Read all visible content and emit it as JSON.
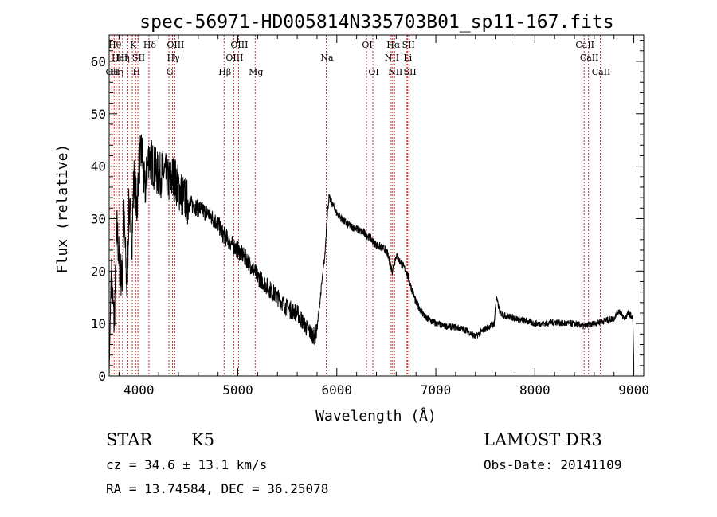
{
  "chart_data": {
    "type": "line",
    "title": "spec-56971-HD005814N335703B01_sp11-167.fits",
    "xlabel": "Wavelength (Å)",
    "ylabel": "Flux (relative)",
    "xlim": [
      3700,
      9100
    ],
    "ylim": [
      0,
      65
    ],
    "x_ticks": [
      4000,
      5000,
      6000,
      7000,
      8000,
      9000
    ],
    "y_ticks": [
      0,
      10,
      20,
      30,
      40,
      50,
      60
    ],
    "x_tick_labels": [
      "4000",
      "5000",
      "6000",
      "7000",
      "8000",
      "9000"
    ],
    "y_tick_labels": [
      "0",
      "10",
      "20",
      "30",
      "40",
      "50",
      "60"
    ],
    "spectrum_anchor_points": {
      "x": [
        3700,
        3720,
        3750,
        3780,
        3800,
        3830,
        3850,
        3880,
        3900,
        3930,
        3950,
        3980,
        4000,
        4030,
        4060,
        4100,
        4150,
        4200,
        4250,
        4300,
        4350,
        4400,
        4450,
        4500,
        4600,
        4700,
        4800,
        4850,
        4900,
        5000,
        5100,
        5200,
        5300,
        5400,
        5500,
        5600,
        5700,
        5750,
        5780,
        5800,
        5850,
        5880,
        5900,
        5920,
        5950,
        6000,
        6050,
        6100,
        6200,
        6300,
        6400,
        6500,
        6560,
        6600,
        6700,
        6800,
        6900,
        7000,
        7100,
        7200,
        7300,
        7400,
        7500,
        7590,
        7610,
        7650,
        7700,
        7800,
        7900,
        8000,
        8100,
        8200,
        8300,
        8400,
        8500,
        8600,
        8700,
        8800,
        8850,
        8900,
        8950,
        8990,
        9000
      ],
      "flux": [
        0,
        20,
        10,
        28,
        22,
        18,
        30,
        16,
        33,
        26,
        38,
        32,
        40,
        43,
        35,
        42,
        40,
        38,
        39,
        37,
        38,
        36,
        34,
        33,
        32,
        31,
        29,
        27,
        26,
        24,
        22,
        19,
        17,
        15,
        13,
        12,
        9,
        8,
        7.5,
        9,
        18,
        23,
        30,
        34,
        33,
        31,
        30,
        29,
        28,
        27,
        25,
        24,
        20,
        23,
        20,
        14,
        11,
        10,
        9.5,
        9.3,
        8.8,
        7.5,
        9,
        10,
        15,
        12,
        11.5,
        11,
        10.5,
        10,
        10,
        10.3,
        10,
        10,
        9.5,
        10,
        10.5,
        11,
        12.5,
        11,
        12,
        11,
        2
      ]
    },
    "line_markers": [
      {
        "wavelength": 3727,
        "label": "OII",
        "row": 3
      },
      {
        "wavelength": 3750,
        "label": "Hθ",
        "row": 1
      },
      {
        "wavelength": 3771,
        "label": "Hη",
        "row": 3
      },
      {
        "wavelength": 3798,
        "label": "HeI",
        "row": 2
      },
      {
        "wavelength": 3835,
        "label": "Hη",
        "row": 2
      },
      {
        "wavelength": 3889,
        "label": "",
        "row": 0
      },
      {
        "wavelength": 3934,
        "label": "K",
        "row": 1
      },
      {
        "wavelength": 3968,
        "label": "H",
        "row": 3
      },
      {
        "wavelength": 3990,
        "label": "SII",
        "row": 2
      },
      {
        "wavelength": 4102,
        "label": "Hδ",
        "row": 1
      },
      {
        "wavelength": 4304,
        "label": "G",
        "row": 3
      },
      {
        "wavelength": 4340,
        "label": "Hγ",
        "row": 2
      },
      {
        "wavelength": 4363,
        "label": "OIII",
        "row": 1
      },
      {
        "wavelength": 4861,
        "label": "Hβ",
        "row": 3
      },
      {
        "wavelength": 4959,
        "label": "OIII",
        "row": 2
      },
      {
        "wavelength": 5007,
        "label": "OIII",
        "row": 1
      },
      {
        "wavelength": 5175,
        "label": "Mg",
        "row": 3
      },
      {
        "wavelength": 5893,
        "label": "Na",
        "row": 2
      },
      {
        "wavelength": 6300,
        "label": "OI",
        "row": 1
      },
      {
        "wavelength": 6364,
        "label": "OI",
        "row": 3
      },
      {
        "wavelength": 6548,
        "label": "NII",
        "row": 2
      },
      {
        "wavelength": 6563,
        "label": "Hα",
        "row": 1
      },
      {
        "wavelength": 6583,
        "label": "NII",
        "row": 3
      },
      {
        "wavelength": 6708,
        "label": "Li",
        "row": 2
      },
      {
        "wavelength": 6716,
        "label": "SII",
        "row": 1
      },
      {
        "wavelength": 6731,
        "label": "SII",
        "row": 3
      },
      {
        "wavelength": 8498,
        "label": "CaII",
        "row": 1
      },
      {
        "wavelength": 8542,
        "label": "CaII",
        "row": 2
      },
      {
        "wavelength": 8662,
        "label": "CaII",
        "row": 3
      }
    ]
  },
  "info": {
    "class": "STAR",
    "subclass": "K5",
    "survey": "LAMOST DR3",
    "cz": "cz = 34.6 ± 13.1 km/s",
    "obs_date": "Obs-Date: 20141109",
    "coords": "RA =  13.74584, DEC =  36.25078"
  }
}
